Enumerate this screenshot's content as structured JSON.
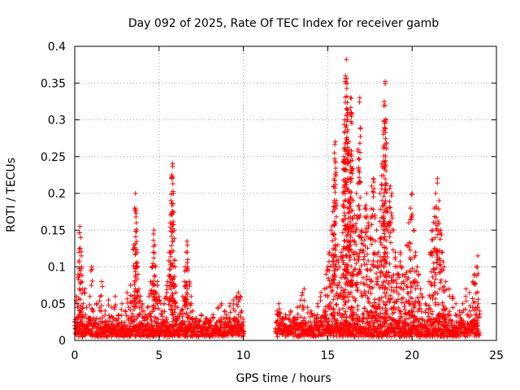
{
  "chart_data": {
    "type": "scatter",
    "title": "Day 092 of 2025, Rate Of TEC Index for receiver gamb",
    "xlabel": "GPS time / hours",
    "ylabel": "ROTI / TECUs",
    "xlim": [
      0,
      25
    ],
    "ylim": [
      0,
      0.4
    ],
    "x_ticks": [
      0,
      5,
      10,
      15,
      20,
      25
    ],
    "x_tick_labels": [
      "0",
      "5",
      "10",
      "15",
      "20",
      "25"
    ],
    "y_ticks": [
      0,
      0.05,
      0.1,
      0.15,
      0.2,
      0.25,
      0.3,
      0.35,
      0.4
    ],
    "y_tick_labels": [
      "0",
      "0.05",
      "0.1",
      "0.15",
      "0.2",
      "0.25",
      "0.3",
      "0.35",
      "0.4"
    ],
    "grid": true,
    "marker": "+",
    "marker_color": "#ff0000",
    "data_gap_hours": [
      10.0,
      11.9
    ],
    "dense_background": [
      {
        "x_start": 0.0,
        "x_end": 10.0,
        "y_low": 0.005,
        "y_high": 0.03
      },
      {
        "x_start": 11.9,
        "x_end": 24.0,
        "y_low": 0.005,
        "y_high": 0.035
      }
    ],
    "series": [
      {
        "name": "ROTI",
        "points": [
          [
            0.0,
            0.02
          ],
          [
            0.1,
            0.06
          ],
          [
            0.2,
            0.09
          ],
          [
            0.25,
            0.12
          ],
          [
            0.3,
            0.155
          ],
          [
            0.35,
            0.14
          ],
          [
            0.4,
            0.1
          ],
          [
            0.45,
            0.07
          ],
          [
            0.5,
            0.05
          ],
          [
            0.6,
            0.07
          ],
          [
            0.7,
            0.045
          ],
          [
            0.8,
            0.03
          ],
          [
            0.9,
            0.06
          ],
          [
            1.0,
            0.1
          ],
          [
            1.1,
            0.04
          ],
          [
            1.3,
            0.05
          ],
          [
            1.5,
            0.06
          ],
          [
            1.6,
            0.08
          ],
          [
            1.8,
            0.04
          ],
          [
            2.0,
            0.055
          ],
          [
            2.2,
            0.045
          ],
          [
            2.4,
            0.06
          ],
          [
            2.6,
            0.035
          ],
          [
            2.8,
            0.05
          ],
          [
            3.0,
            0.04
          ],
          [
            3.1,
            0.065
          ],
          [
            3.2,
            0.045
          ],
          [
            3.3,
            0.075
          ],
          [
            3.4,
            0.06
          ],
          [
            3.5,
            0.13
          ],
          [
            3.55,
            0.18
          ],
          [
            3.6,
            0.2
          ],
          [
            3.65,
            0.16
          ],
          [
            3.7,
            0.12
          ],
          [
            3.75,
            0.09
          ],
          [
            3.8,
            0.07
          ],
          [
            3.9,
            0.06
          ],
          [
            4.0,
            0.05
          ],
          [
            4.1,
            0.04
          ],
          [
            4.2,
            0.035
          ],
          [
            4.3,
            0.045
          ],
          [
            4.4,
            0.06
          ],
          [
            4.5,
            0.08
          ],
          [
            4.6,
            0.1
          ],
          [
            4.65,
            0.12
          ],
          [
            4.7,
            0.15
          ],
          [
            4.75,
            0.13
          ],
          [
            4.8,
            0.1
          ],
          [
            4.9,
            0.08
          ],
          [
            5.0,
            0.06
          ],
          [
            5.1,
            0.05
          ],
          [
            5.2,
            0.04
          ],
          [
            5.3,
            0.05
          ],
          [
            5.4,
            0.06
          ],
          [
            5.5,
            0.08
          ],
          [
            5.6,
            0.12
          ],
          [
            5.65,
            0.16
          ],
          [
            5.7,
            0.19
          ],
          [
            5.75,
            0.225
          ],
          [
            5.8,
            0.24
          ],
          [
            5.85,
            0.2
          ],
          [
            5.9,
            0.15
          ],
          [
            5.95,
            0.1
          ],
          [
            6.0,
            0.065
          ],
          [
            6.1,
            0.045
          ],
          [
            6.2,
            0.035
          ],
          [
            6.3,
            0.04
          ],
          [
            6.4,
            0.06
          ],
          [
            6.5,
            0.08
          ],
          [
            6.55,
            0.1
          ],
          [
            6.6,
            0.12
          ],
          [
            6.65,
            0.135
          ],
          [
            6.7,
            0.11
          ],
          [
            6.8,
            0.08
          ],
          [
            6.9,
            0.06
          ],
          [
            7.0,
            0.04
          ],
          [
            7.2,
            0.03
          ],
          [
            7.5,
            0.035
          ],
          [
            7.8,
            0.03
          ],
          [
            8.0,
            0.025
          ],
          [
            8.2,
            0.035
          ],
          [
            8.5,
            0.045
          ],
          [
            8.7,
            0.05
          ],
          [
            8.9,
            0.04
          ],
          [
            9.0,
            0.035
          ],
          [
            9.2,
            0.05
          ],
          [
            9.4,
            0.055
          ],
          [
            9.5,
            0.04
          ],
          [
            9.6,
            0.06
          ],
          [
            9.7,
            0.065
          ],
          [
            9.8,
            0.06
          ],
          [
            9.9,
            0.04
          ],
          [
            10.0,
            0.02
          ],
          [
            12.0,
            0.04
          ],
          [
            12.1,
            0.05
          ],
          [
            12.3,
            0.03
          ],
          [
            12.5,
            0.035
          ],
          [
            12.8,
            0.04
          ],
          [
            13.0,
            0.03
          ],
          [
            13.2,
            0.045
          ],
          [
            13.4,
            0.055
          ],
          [
            13.5,
            0.065
          ],
          [
            13.6,
            0.07
          ],
          [
            13.8,
            0.045
          ],
          [
            14.0,
            0.04
          ],
          [
            14.2,
            0.035
          ],
          [
            14.4,
            0.05
          ],
          [
            14.6,
            0.065
          ],
          [
            14.8,
            0.07
          ],
          [
            14.9,
            0.09
          ],
          [
            15.0,
            0.1
          ],
          [
            15.1,
            0.12
          ],
          [
            15.2,
            0.15
          ],
          [
            15.3,
            0.175
          ],
          [
            15.35,
            0.21
          ],
          [
            15.4,
            0.255
          ],
          [
            15.45,
            0.27
          ],
          [
            15.5,
            0.19
          ],
          [
            15.6,
            0.13
          ],
          [
            15.7,
            0.1
          ],
          [
            15.8,
            0.12
          ],
          [
            15.9,
            0.2
          ],
          [
            15.95,
            0.25
          ],
          [
            16.0,
            0.3
          ],
          [
            16.05,
            0.36
          ],
          [
            16.1,
            0.382
          ],
          [
            16.15,
            0.35
          ],
          [
            16.2,
            0.31
          ],
          [
            16.25,
            0.27
          ],
          [
            16.3,
            0.22
          ],
          [
            16.35,
            0.33
          ],
          [
            16.4,
            0.31
          ],
          [
            16.45,
            0.245
          ],
          [
            16.5,
            0.19
          ],
          [
            16.6,
            0.17
          ],
          [
            16.7,
            0.2
          ],
          [
            16.8,
            0.26
          ],
          [
            16.9,
            0.33
          ],
          [
            17.0,
            0.15
          ],
          [
            17.1,
            0.13
          ],
          [
            17.2,
            0.18
          ],
          [
            17.3,
            0.2
          ],
          [
            17.4,
            0.16
          ],
          [
            17.5,
            0.14
          ],
          [
            17.6,
            0.21
          ],
          [
            17.7,
            0.22
          ],
          [
            17.8,
            0.17
          ],
          [
            17.9,
            0.15
          ],
          [
            18.0,
            0.12
          ],
          [
            18.1,
            0.2
          ],
          [
            18.2,
            0.24
          ],
          [
            18.3,
            0.285
          ],
          [
            18.35,
            0.325
          ],
          [
            18.4,
            0.352
          ],
          [
            18.45,
            0.3
          ],
          [
            18.5,
            0.18
          ],
          [
            18.6,
            0.16
          ],
          [
            18.7,
            0.21
          ],
          [
            18.8,
            0.2
          ],
          [
            18.9,
            0.15
          ],
          [
            19.0,
            0.12
          ],
          [
            19.1,
            0.1
          ],
          [
            19.2,
            0.09
          ],
          [
            19.3,
            0.12
          ],
          [
            19.4,
            0.1
          ],
          [
            19.5,
            0.08
          ],
          [
            19.6,
            0.09
          ],
          [
            19.7,
            0.13
          ],
          [
            19.8,
            0.16
          ],
          [
            19.9,
            0.18
          ],
          [
            20.0,
            0.2
          ],
          [
            20.1,
            0.15
          ],
          [
            20.2,
            0.12
          ],
          [
            20.3,
            0.1
          ],
          [
            20.4,
            0.09
          ],
          [
            20.5,
            0.07
          ],
          [
            20.6,
            0.06
          ],
          [
            20.8,
            0.05
          ],
          [
            21.0,
            0.08
          ],
          [
            21.1,
            0.12
          ],
          [
            21.2,
            0.15
          ],
          [
            21.3,
            0.18
          ],
          [
            21.4,
            0.2
          ],
          [
            21.5,
            0.22
          ],
          [
            21.6,
            0.19
          ],
          [
            21.7,
            0.15
          ],
          [
            21.8,
            0.12
          ],
          [
            21.9,
            0.1
          ],
          [
            22.0,
            0.08
          ],
          [
            22.2,
            0.07
          ],
          [
            22.4,
            0.06
          ],
          [
            22.6,
            0.05
          ],
          [
            22.8,
            0.04
          ],
          [
            23.0,
            0.05
          ],
          [
            23.2,
            0.07
          ],
          [
            23.4,
            0.065
          ],
          [
            23.6,
            0.08
          ],
          [
            23.7,
            0.09
          ],
          [
            23.8,
            0.1
          ],
          [
            23.9,
            0.115
          ],
          [
            24.0,
            0.04
          ]
        ]
      }
    ]
  }
}
